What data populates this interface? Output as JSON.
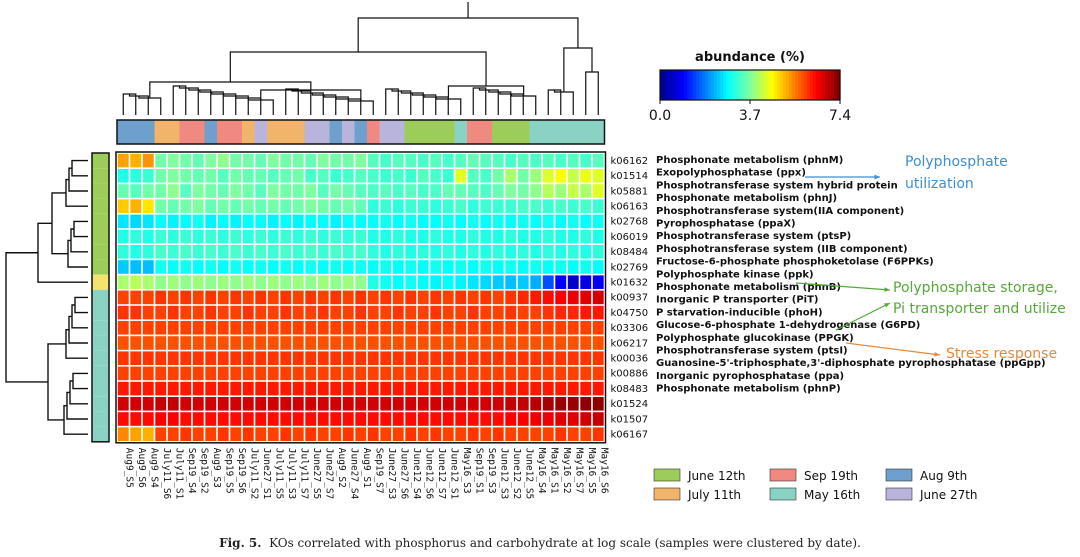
{
  "chart_data": {
    "type": "heatmap",
    "colorbar": {
      "title": "abundance (%)",
      "min": 0.0,
      "mid": 3.7,
      "max": 7.4,
      "tick_labels": [
        "0.0",
        "3.7",
        "7.4"
      ]
    },
    "samples": [
      "Aug9_S5",
      "Aug9_S6",
      "Aug9_S4",
      "July11_S6",
      "July11_S1",
      "Sep19_S4",
      "Sep19_S2",
      "Aug9_S3",
      "Sep19_S5",
      "Sep19_S6",
      "July11_S2",
      "June27_S1",
      "July11_S5",
      "July11_S3",
      "July11_S7",
      "June27_S5",
      "June27_S7",
      "Aug9_S2",
      "June27_S4",
      "Aug9_S1",
      "Sep19_S7",
      "June27_S3",
      "June27_S6",
      "June12_S4",
      "June12_S6",
      "June12_S7",
      "June12_S1",
      "May16_S3",
      "Sep19_S1",
      "Sep19_S3",
      "June12_S3",
      "June12_S2",
      "June12_S5",
      "May16_S4",
      "May16_S1",
      "May16_S2",
      "May16_S7",
      "May16_S5",
      "May16_S6"
    ],
    "sample_dates": [
      "Aug 9th",
      "Aug 9th",
      "Aug 9th",
      "July 11th",
      "July 11th",
      "Sep 19th",
      "Sep 19th",
      "Aug 9th",
      "Sep 19th",
      "Sep 19th",
      "July 11th",
      "June 27th",
      "July 11th",
      "July 11th",
      "July 11th",
      "June 27th",
      "June 27th",
      "Aug 9th",
      "June 27th",
      "Aug 9th",
      "Sep 19th",
      "June 27th",
      "June 27th",
      "June 12th",
      "June 12th",
      "June 12th",
      "June 12th",
      "May 16th",
      "Sep 19th",
      "Sep 19th",
      "June 12th",
      "June 12th",
      "June 12th",
      "May 16th",
      "May 16th",
      "May 16th",
      "May 16th",
      "May 16th",
      "May 16th"
    ],
    "kos": [
      "k06162",
      "k01514",
      "k05881",
      "k06163",
      "k02768",
      "k06019",
      "k08484",
      "k02769",
      "k01632",
      "k00937",
      "k04750",
      "k03306",
      "k06217",
      "k00036",
      "k00886",
      "k08483",
      "k01524",
      "k01507",
      "k06167"
    ],
    "functions": [
      "Phosphonate metabolism (phnM)",
      "Exopolyphosphatase (ppx)",
      "Phosphotransferase system hybrid protein",
      "Phosphonate metabolism (phnJ)",
      "Phosphotransferase system(IIA component)",
      "Pyrophosphatase (ppaX)",
      "Phosphotransferase system (ptsP)",
      "Phosphotransferase system (IIB component)",
      "Fructose-6-phosphate phosphoketolase (F6PPKs)",
      "Polyphosphate kinase (ppk)",
      "Phosphonate metabolism (phnB)",
      "Inorganic P transporter (PiT)",
      "P starvation-inducible (phoH)",
      "Glucose-6-phosphate 1-dehydrogenase (G6PD)",
      "Polyphosphate glucokinase (PPGK)",
      "Phosphotransferase system (ptsI)",
      "Guanosine-5'-triphosphate,3'-diphosphate pyrophosphatase (ppGpp)",
      "Inorganic pyrophosphatase (ppa)",
      "Phosphonate metabolism (phnP)"
    ],
    "row_group_colors": [
      "#9ccc5a",
      "#9ccc5a",
      "#9ccc5a",
      "#9ccc5a",
      "#9ccc5a",
      "#9ccc5a",
      "#9ccc5a",
      "#9ccc5a",
      "#f4e36e",
      "#8ad3c4",
      "#8ad3c4",
      "#8ad3c4",
      "#8ad3c4",
      "#8ad3c4",
      "#8ad3c4",
      "#8ad3c4",
      "#8ad3c4",
      "#8ad3c4",
      "#8ad3c4"
    ],
    "values": [
      [
        5.3,
        5.2,
        5.4,
        3.6,
        3.7,
        3.6,
        3.5,
        3.7,
        3.8,
        3.6,
        3.6,
        3.5,
        3.7,
        3.6,
        3.6,
        3.5,
        3.7,
        3.6,
        3.6,
        3.7,
        3.4,
        3.3,
        3.4,
        3.4,
        3.3,
        3.4,
        3.3,
        3.4,
        3.5,
        3.4,
        3.4,
        3.3,
        3.4,
        3.3,
        3.4,
        3.3,
        3.4,
        3.3,
        3.4
      ],
      [
        3.0,
        3.1,
        3.2,
        3.6,
        3.7,
        3.6,
        3.5,
        3.6,
        3.4,
        3.6,
        3.5,
        3.5,
        3.4,
        3.5,
        3.6,
        3.3,
        3.4,
        3.2,
        3.3,
        3.4,
        3.3,
        3.2,
        3.3,
        3.2,
        3.4,
        3.3,
        3.2,
        4.4,
        3.4,
        3.3,
        3.6,
        4.0,
        3.6,
        3.9,
        4.4,
        4.6,
        4.2,
        4.5,
        4.4
      ],
      [
        3.5,
        3.4,
        3.6,
        3.6,
        3.8,
        3.4,
        3.7,
        3.6,
        3.5,
        3.7,
        3.6,
        3.4,
        3.7,
        3.6,
        3.6,
        3.7,
        3.4,
        3.6,
        3.5,
        3.4,
        3.3,
        3.4,
        3.3,
        3.4,
        3.3,
        3.3,
        3.5,
        3.5,
        3.4,
        3.3,
        3.5,
        3.7,
        3.6,
        3.8,
        4.1,
        3.9,
        4.2,
        4.0,
        4.4
      ],
      [
        5.0,
        5.2,
        4.8,
        3.6,
        3.5,
        3.6,
        3.7,
        3.5,
        3.6,
        3.5,
        3.6,
        3.5,
        3.6,
        3.5,
        3.6,
        3.7,
        3.6,
        3.5,
        3.6,
        3.5,
        3.1,
        3.2,
        3.1,
        3.2,
        3.2,
        3.1,
        3.2,
        3.3,
        3.1,
        3.2,
        3.2,
        3.2,
        3.3,
        3.3,
        3.2,
        3.3,
        3.2,
        3.3,
        3.2
      ],
      [
        2.6,
        2.5,
        2.6,
        2.8,
        2.7,
        2.8,
        2.9,
        2.7,
        2.8,
        2.7,
        2.8,
        2.8,
        2.7,
        2.8,
        2.7,
        2.8,
        2.8,
        2.7,
        2.8,
        2.8,
        2.8,
        2.9,
        2.8,
        2.9,
        2.8,
        2.8,
        2.9,
        2.8,
        2.9,
        2.8,
        2.9,
        2.8,
        2.9,
        2.8,
        2.9,
        2.8,
        2.9,
        2.8,
        2.9
      ],
      [
        3.0,
        3.1,
        3.0,
        3.2,
        3.1,
        3.2,
        3.1,
        3.2,
        3.1,
        3.2,
        3.1,
        3.2,
        3.1,
        3.2,
        3.1,
        3.2,
        3.1,
        3.2,
        3.1,
        3.2,
        3.0,
        3.0,
        3.1,
        3.0,
        3.0,
        3.1,
        3.0,
        3.0,
        3.1,
        3.0,
        3.0,
        3.1,
        3.0,
        3.0,
        3.1,
        3.0,
        3.0,
        3.1,
        3.0
      ],
      [
        3.1,
        3.0,
        3.1,
        3.3,
        3.2,
        3.3,
        3.2,
        3.3,
        3.2,
        3.3,
        3.2,
        3.3,
        3.2,
        3.3,
        3.2,
        3.3,
        3.2,
        3.3,
        3.2,
        3.3,
        3.1,
        3.0,
        3.1,
        3.0,
        3.1,
        3.0,
        3.1,
        3.0,
        3.1,
        3.0,
        3.1,
        3.0,
        3.1,
        3.0,
        3.1,
        3.0,
        3.1,
        3.0,
        3.1
      ],
      [
        2.4,
        2.3,
        2.3,
        2.9,
        2.8,
        2.9,
        2.8,
        2.9,
        2.8,
        2.9,
        2.8,
        2.9,
        2.8,
        2.9,
        2.8,
        2.9,
        2.8,
        2.9,
        2.8,
        2.9,
        2.8,
        2.9,
        2.8,
        2.9,
        2.8,
        2.9,
        2.8,
        2.9,
        2.8,
        2.9,
        2.8,
        2.9,
        2.8,
        2.9,
        2.8,
        2.9,
        2.8,
        2.9,
        2.8
      ],
      [
        4.0,
        4.1,
        4.0,
        3.8,
        3.9,
        3.8,
        3.9,
        3.8,
        3.9,
        3.8,
        3.9,
        3.8,
        3.9,
        3.8,
        3.9,
        3.8,
        3.9,
        3.8,
        3.9,
        3.8,
        3.0,
        2.9,
        2.8,
        2.9,
        2.8,
        2.7,
        2.8,
        2.7,
        2.6,
        2.5,
        2.4,
        2.3,
        2.4,
        2.2,
        1.5,
        0.9,
        0.5,
        0.7,
        0.8
      ],
      [
        6.0,
        6.0,
        6.0,
        6.1,
        6.0,
        6.1,
        6.0,
        6.1,
        6.0,
        6.1,
        6.0,
        6.1,
        6.0,
        6.1,
        6.0,
        6.1,
        6.0,
        6.1,
        6.0,
        6.1,
        6.0,
        6.1,
        6.0,
        6.1,
        6.0,
        6.1,
        6.0,
        6.1,
        6.0,
        6.1,
        6.0,
        6.1,
        6.2,
        6.3,
        6.4,
        6.5,
        6.6,
        6.7,
        6.8
      ],
      [
        6.1,
        6.1,
        6.0,
        6.0,
        6.1,
        6.0,
        6.0,
        6.1,
        6.0,
        6.0,
        6.1,
        6.0,
        6.0,
        6.1,
        6.0,
        6.0,
        6.1,
        6.0,
        6.0,
        6.1,
        6.0,
        6.0,
        6.1,
        6.0,
        6.0,
        6.1,
        6.0,
        6.0,
        6.1,
        6.0,
        6.0,
        6.1,
        6.0,
        6.0,
        6.1,
        6.2,
        6.2,
        6.3,
        6.3
      ],
      [
        6.0,
        6.0,
        6.0,
        6.0,
        6.0,
        6.0,
        6.0,
        6.0,
        6.0,
        6.0,
        6.0,
        6.0,
        6.0,
        6.0,
        6.0,
        6.0,
        6.0,
        6.0,
        6.0,
        6.0,
        6.0,
        6.0,
        6.0,
        6.0,
        6.0,
        6.0,
        6.0,
        6.0,
        6.0,
        6.0,
        6.0,
        6.0,
        6.0,
        6.0,
        6.0,
        6.0,
        6.0,
        6.0,
        6.0
      ],
      [
        5.9,
        5.9,
        5.9,
        5.9,
        5.9,
        5.9,
        5.9,
        5.9,
        5.9,
        5.9,
        5.9,
        5.9,
        5.9,
        5.9,
        5.9,
        5.9,
        5.9,
        5.9,
        5.9,
        5.9,
        5.9,
        5.9,
        5.9,
        5.9,
        5.9,
        5.9,
        5.9,
        5.9,
        5.9,
        5.9,
        5.9,
        5.9,
        5.9,
        5.9,
        5.9,
        5.9,
        5.9,
        5.9,
        5.9
      ],
      [
        6.1,
        6.1,
        6.1,
        6.1,
        6.1,
        6.1,
        6.1,
        6.1,
        6.1,
        6.1,
        6.1,
        6.1,
        6.1,
        6.1,
        6.1,
        6.1,
        6.1,
        6.1,
        6.1,
        6.1,
        6.1,
        6.1,
        6.1,
        6.1,
        6.1,
        6.1,
        6.1,
        6.1,
        6.1,
        6.1,
        6.1,
        6.1,
        6.1,
        6.1,
        6.1,
        6.1,
        6.1,
        6.1,
        6.1
      ],
      [
        6.0,
        6.0,
        6.0,
        6.0,
        6.0,
        6.0,
        6.0,
        6.0,
        6.0,
        6.0,
        6.0,
        6.0,
        6.0,
        6.0,
        6.0,
        6.0,
        6.0,
        6.0,
        6.0,
        6.0,
        6.0,
        6.0,
        6.0,
        6.0,
        6.0,
        6.0,
        6.0,
        6.0,
        6.0,
        6.0,
        6.0,
        6.0,
        6.0,
        6.0,
        6.0,
        6.0,
        6.0,
        6.0,
        6.0
      ],
      [
        6.3,
        6.3,
        6.3,
        6.3,
        6.3,
        6.3,
        6.3,
        6.3,
        6.3,
        6.3,
        6.3,
        6.3,
        6.3,
        6.3,
        6.3,
        6.3,
        6.3,
        6.3,
        6.3,
        6.3,
        6.3,
        6.3,
        6.3,
        6.3,
        6.3,
        6.3,
        6.3,
        6.3,
        6.3,
        6.3,
        6.3,
        6.3,
        6.3,
        6.3,
        6.3,
        6.3,
        6.3,
        6.3,
        6.3
      ],
      [
        6.8,
        6.8,
        6.8,
        6.9,
        6.9,
        6.8,
        6.8,
        6.8,
        6.8,
        6.8,
        6.8,
        6.8,
        6.8,
        6.8,
        6.8,
        6.8,
        6.8,
        6.8,
        6.8,
        6.8,
        6.8,
        6.8,
        6.8,
        6.8,
        6.8,
        6.8,
        6.8,
        6.8,
        6.8,
        6.8,
        6.8,
        6.9,
        6.9,
        7.0,
        7.1,
        7.2,
        7.2,
        7.3,
        7.3
      ],
      [
        6.4,
        6.4,
        6.4,
        6.5,
        6.5,
        6.4,
        6.4,
        6.4,
        6.4,
        6.4,
        6.4,
        6.4,
        6.4,
        6.4,
        6.4,
        6.4,
        6.4,
        6.4,
        6.4,
        6.4,
        6.4,
        6.4,
        6.4,
        6.4,
        6.4,
        6.4,
        6.4,
        6.4,
        6.4,
        6.4,
        6.4,
        6.5,
        6.5,
        6.6,
        6.6,
        6.7,
        6.7,
        6.8,
        6.9
      ],
      [
        5.5,
        5.3,
        5.2,
        6.0,
        6.0,
        6.1,
        6.0,
        6.0,
        6.1,
        6.0,
        6.1,
        6.0,
        6.0,
        6.1,
        6.0,
        6.1,
        6.0,
        6.0,
        6.1,
        6.0,
        6.1,
        6.0,
        6.0,
        6.1,
        6.0,
        6.1,
        6.0,
        6.0,
        6.1,
        6.0,
        6.1,
        6.0,
        6.0,
        6.0,
        6.0,
        6.1,
        6.0,
        6.0,
        6.1
      ]
    ],
    "legend": [
      {
        "label": "June 12th",
        "color": "#9ccc5a"
      },
      {
        "label": "Sep 19th",
        "color": "#f08a80"
      },
      {
        "label": "Aug 9th",
        "color": "#6f9fcd"
      },
      {
        "label": "July 11th",
        "color": "#f2b36b"
      },
      {
        "label": "May 16th",
        "color": "#8ad3c4"
      },
      {
        "label": "June 27th",
        "color": "#b8b4dc"
      }
    ],
    "annotations": [
      {
        "text": "Polyphosphate",
        "color": "#3d8fd0"
      },
      {
        "text": "utilization",
        "color": "#3d8fd0"
      },
      {
        "text": "Polyphosphate storage,",
        "color": "#56a83a"
      },
      {
        "text": "Pi transporter and utilize",
        "color": "#56a83a"
      },
      {
        "text": "Stress response",
        "color": "#e8893b"
      }
    ]
  },
  "caption": {
    "label": "Fig. 5.",
    "text": "KOs correlated with phosphorus and carbohydrate at log scale (samples were clustered by date)."
  }
}
